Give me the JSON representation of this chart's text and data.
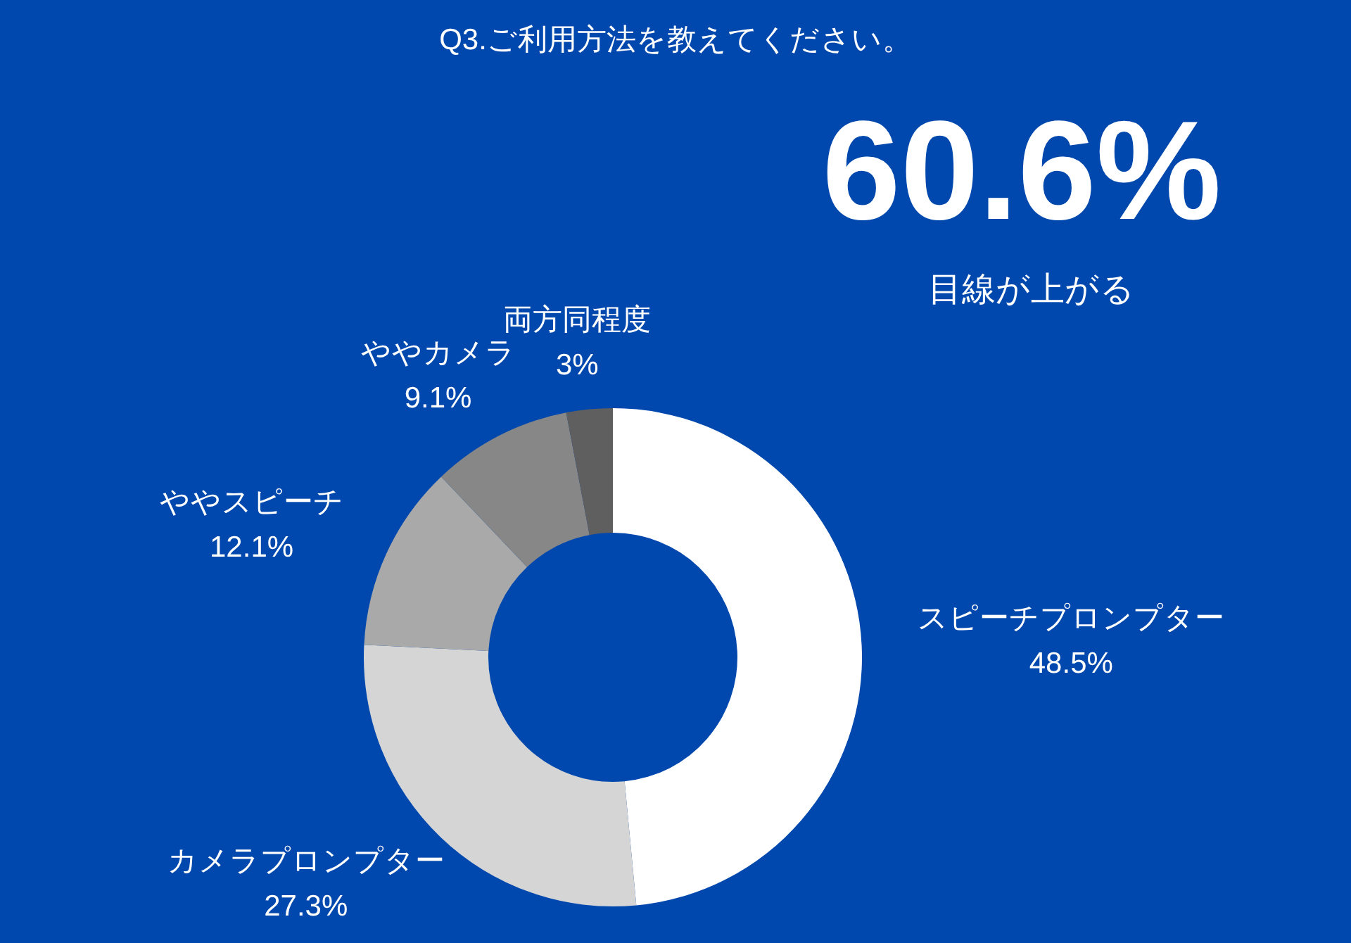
{
  "chart_data": {
    "type": "donut",
    "title": "Q3.ご利用方法を教えてください。",
    "categories": [
      "スピーチプロンプター",
      "カメラプロンプター",
      "ややスピーチ",
      "ややカメラ",
      "両方同程度"
    ],
    "values": [
      48.5,
      27.3,
      12.1,
      9.1,
      3
    ],
    "colors": [
      "#ffffff",
      "#d5d5d5",
      "#a9a9a9",
      "#878787",
      "#5f5f5f"
    ],
    "value_labels": [
      "48.5%",
      "27.3%",
      "12.1%",
      "9.1%",
      "3%"
    ],
    "annotations": [
      "60.6%",
      "目線が上がる"
    ]
  }
}
